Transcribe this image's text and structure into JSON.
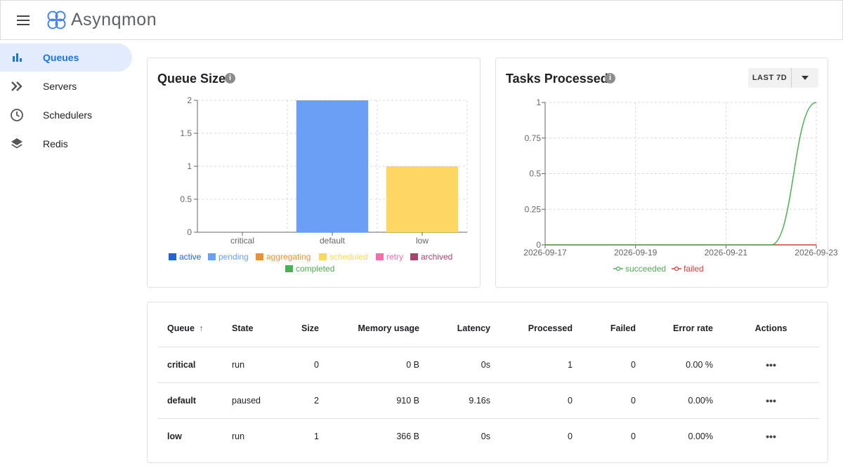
{
  "app": {
    "title": "Asynqmon"
  },
  "sidebar": {
    "items": [
      {
        "label": "Queues",
        "icon": "bar-chart-icon",
        "active": true
      },
      {
        "label": "Servers",
        "icon": "double-chevron-icon",
        "active": false
      },
      {
        "label": "Schedulers",
        "icon": "clock-icon",
        "active": false
      },
      {
        "label": "Redis",
        "icon": "layers-icon",
        "active": false
      }
    ]
  },
  "queue_size_card": {
    "title": "Queue Size",
    "legend": [
      {
        "label": "active",
        "color": "#2663d0"
      },
      {
        "label": "pending",
        "color": "#6b9ff5"
      },
      {
        "label": "aggregating",
        "color": "#e8923a"
      },
      {
        "label": "scheduled",
        "color": "#fdd664"
      },
      {
        "label": "retry",
        "color": "#f06fa7"
      },
      {
        "label": "archived",
        "color": "#a3466c"
      },
      {
        "label": "completed",
        "color": "#4caf50"
      }
    ]
  },
  "tasks_card": {
    "title": "Tasks Processed",
    "range_label": "LAST 7D",
    "legend": [
      {
        "label": "succeeded",
        "color": "#4caf50"
      },
      {
        "label": "failed",
        "color": "#e53935"
      }
    ]
  },
  "chart_data": [
    {
      "type": "bar",
      "title": "Queue Size",
      "categories": [
        "critical",
        "default",
        "low"
      ],
      "stacked": true,
      "series": [
        {
          "name": "active",
          "values": [
            0,
            0,
            0
          ]
        },
        {
          "name": "pending",
          "values": [
            0,
            2,
            0
          ]
        },
        {
          "name": "aggregating",
          "values": [
            0,
            0,
            0
          ]
        },
        {
          "name": "scheduled",
          "values": [
            0,
            0,
            1
          ]
        },
        {
          "name": "retry",
          "values": [
            0,
            0,
            0
          ]
        },
        {
          "name": "archived",
          "values": [
            0,
            0,
            0
          ]
        },
        {
          "name": "completed",
          "values": [
            0,
            0,
            0
          ]
        }
      ],
      "ylim": [
        0,
        2
      ],
      "yticks": [
        "0",
        "0.5",
        "1",
        "1.5",
        "2"
      ],
      "grid": true,
      "legend": "bottom"
    },
    {
      "type": "line",
      "title": "Tasks Processed",
      "x": [
        "2026-09-17",
        "2026-09-18",
        "2026-09-19",
        "2026-09-20",
        "2026-09-21",
        "2026-09-22",
        "2026-09-23"
      ],
      "xticks": [
        "2026-09-17",
        "2026-09-19",
        "2026-09-21",
        "2026-09-23"
      ],
      "series": [
        {
          "name": "succeeded",
          "values": [
            0,
            0,
            0,
            0,
            0,
            0,
            1
          ]
        },
        {
          "name": "failed",
          "values": [
            0,
            0,
            0,
            0,
            0,
            0,
            0
          ]
        }
      ],
      "ylim": [
        0,
        1
      ],
      "yticks": [
        "0",
        "0.25",
        "0.5",
        "0.75",
        "1"
      ],
      "grid": true,
      "legend": "bottom"
    }
  ],
  "table": {
    "headers": {
      "queue": "Queue",
      "sort_indicator": "↑",
      "state": "State",
      "size": "Size",
      "memory": "Memory usage",
      "latency": "Latency",
      "processed": "Processed",
      "failed": "Failed",
      "error_rate": "Error rate",
      "actions": "Actions"
    },
    "rows": [
      {
        "queue": "critical",
        "state": "run",
        "size": "0",
        "memory": "0 B",
        "latency": "0s",
        "processed": "1",
        "failed": "0",
        "error_rate": "0.00 %",
        "actions": "•••"
      },
      {
        "queue": "default",
        "state": "paused",
        "size": "2",
        "memory": "910 B",
        "latency": "9.16s",
        "processed": "0",
        "failed": "0",
        "error_rate": "0.00%",
        "actions": "•••"
      },
      {
        "queue": "low",
        "state": "run",
        "size": "1",
        "memory": "366 B",
        "latency": "0s",
        "processed": "0",
        "failed": "0",
        "error_rate": "0.00%",
        "actions": "•••"
      }
    ]
  }
}
